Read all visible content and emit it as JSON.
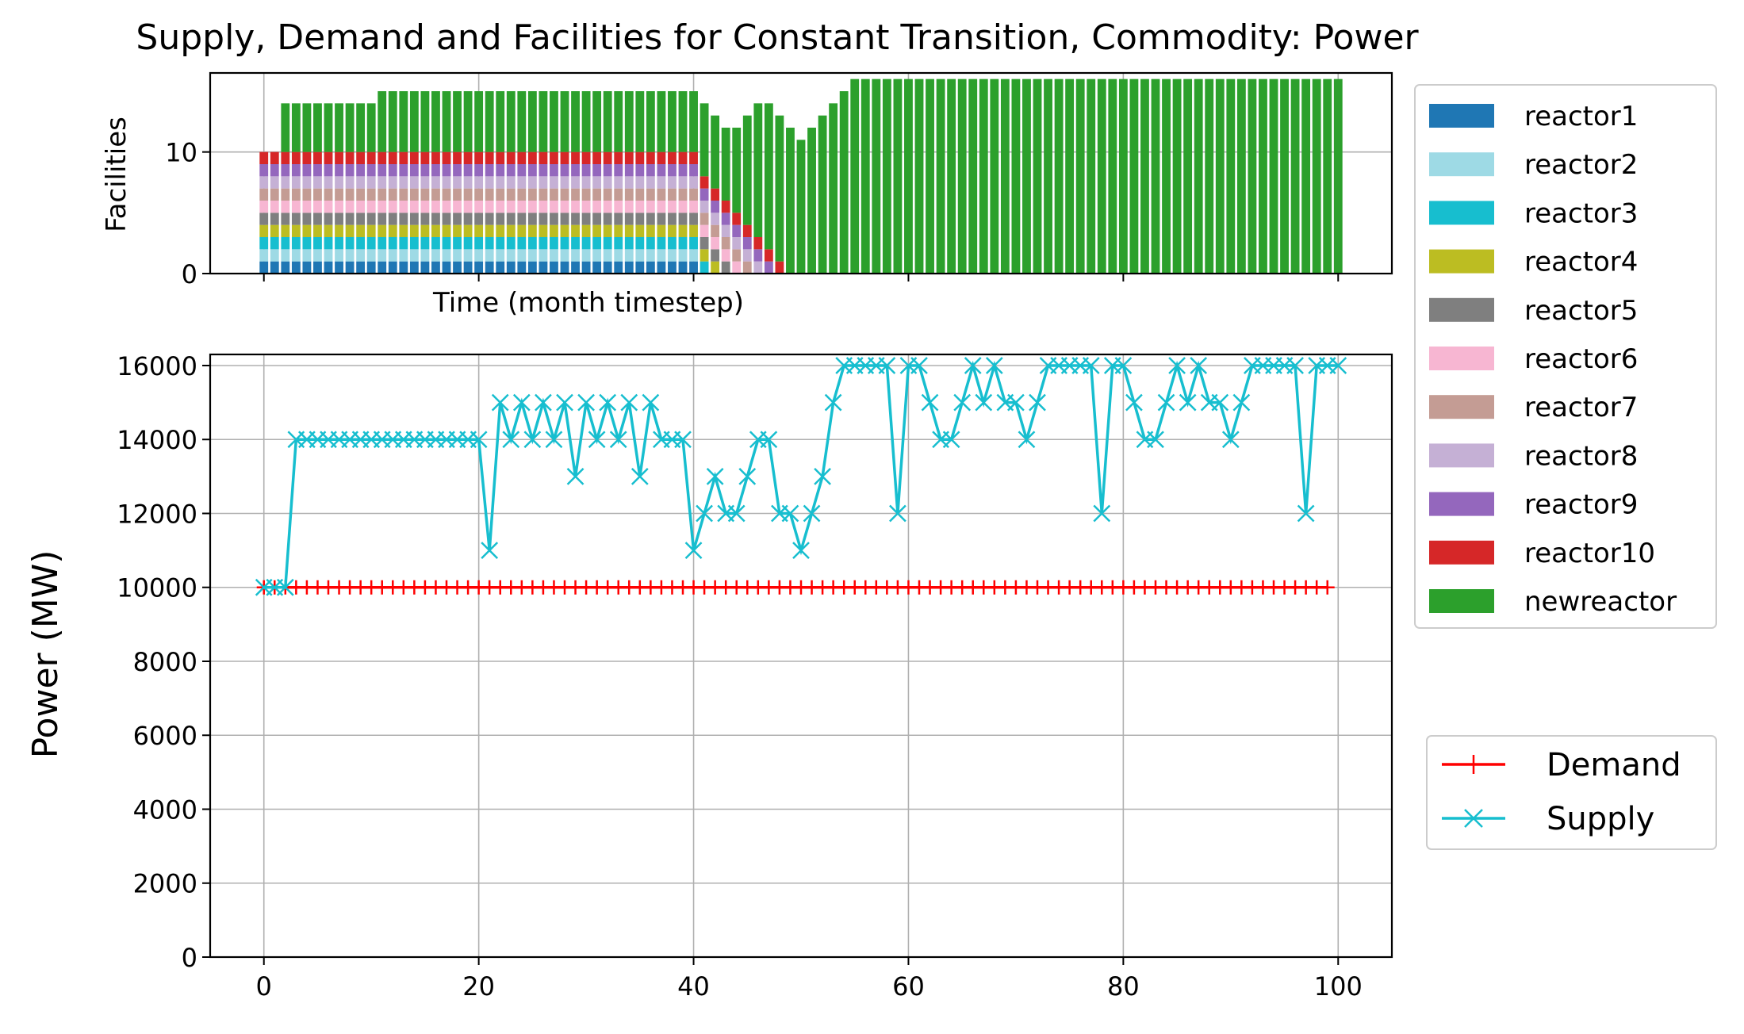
{
  "chart_data": [
    {
      "type": "bar",
      "stacked": true,
      "title": "Supply, Demand and Facilities for Constant Transition, Commodity:  Power",
      "xlabel": "Time (month timestep)",
      "ylabel": "Facilities",
      "xlim": [
        -5,
        105
      ],
      "ylim": [
        0,
        16.5
      ],
      "yticks": [
        "0",
        "10"
      ],
      "grid": true,
      "legend_position": "right, outside plot",
      "series": [
        {
          "name": "reactor1",
          "color": "#1f77b4",
          "end": 41
        },
        {
          "name": "reactor2",
          "color": "#9edae5",
          "end": 41
        },
        {
          "name": "reactor3",
          "color": "#17becf",
          "end": 42
        },
        {
          "name": "reactor4",
          "color": "#bcbd22",
          "end": 43
        },
        {
          "name": "reactor5",
          "color": "#7f7f7f",
          "end": 44
        },
        {
          "name": "reactor6",
          "color": "#f7b6d2",
          "end": 45
        },
        {
          "name": "reactor7",
          "color": "#c49c94",
          "end": 46
        },
        {
          "name": "reactor8",
          "color": "#c5b0d5",
          "end": 47
        },
        {
          "name": "reactor9",
          "color": "#9467bd",
          "end": 48
        },
        {
          "name": "reactor10",
          "color": "#d62728",
          "end": 49
        },
        {
          "name": "newreactor",
          "color": "#2ca02c",
          "start": 2,
          "totals": [
            10,
            10,
            14,
            14,
            14,
            14,
            14,
            14,
            14,
            14,
            14,
            15,
            15,
            15,
            15,
            15,
            15,
            15,
            15,
            15,
            15,
            15,
            15,
            15,
            15,
            15,
            15,
            15,
            15,
            15,
            15,
            15,
            15,
            15,
            15,
            15,
            15,
            15,
            15,
            15,
            15,
            14,
            13,
            12,
            12,
            13,
            14,
            14,
            13,
            12,
            11,
            12,
            13,
            14,
            15,
            16,
            16,
            16,
            16,
            16,
            16,
            16,
            16,
            16,
            16,
            16,
            16,
            16,
            16,
            16,
            16,
            16,
            16,
            16,
            16,
            16,
            16,
            16,
            16,
            16,
            16,
            16,
            16,
            16,
            16,
            16,
            16,
            16,
            16,
            16,
            16,
            16,
            16,
            16,
            16,
            16,
            16,
            16,
            16,
            16,
            16
          ]
        }
      ]
    },
    {
      "type": "line",
      "title": "",
      "xlabel": "",
      "ylabel": "Power (MW)",
      "xlim": [
        -5,
        105
      ],
      "ylim": [
        0,
        16300
      ],
      "xticks": [
        "0",
        "20",
        "40",
        "60",
        "80",
        "100"
      ],
      "yticks": [
        "0",
        "2000",
        "4000",
        "6000",
        "8000",
        "10000",
        "12000",
        "14000",
        "16000"
      ],
      "grid": true,
      "legend_position": "right, outside plot",
      "series": [
        {
          "name": "Demand",
          "color": "#ff0000",
          "marker": "+",
          "x_start": 0,
          "x_end": 99,
          "constant": 10000
        },
        {
          "name": "Supply",
          "color": "#17becf",
          "marker": "x",
          "x_start": 0,
          "values": [
            10000,
            10000,
            10000,
            14000,
            14000,
            14000,
            14000,
            14000,
            14000,
            14000,
            14000,
            14000,
            14000,
            14000,
            14000,
            14000,
            14000,
            14000,
            14000,
            14000,
            14000,
            11000,
            15000,
            14000,
            15000,
            14000,
            15000,
            14000,
            15000,
            13000,
            15000,
            14000,
            15000,
            14000,
            15000,
            13000,
            15000,
            14000,
            14000,
            14000,
            11000,
            12000,
            13000,
            12000,
            12000,
            13000,
            14000,
            14000,
            12000,
            12000,
            11000,
            12000,
            13000,
            15000,
            16000,
            16000,
            16000,
            16000,
            16000,
            12000,
            16000,
            16000,
            15000,
            14000,
            14000,
            15000,
            16000,
            15000,
            16000,
            15000,
            15000,
            14000,
            15000,
            16000,
            16000,
            16000,
            16000,
            16000,
            12000,
            16000,
            16000,
            15000,
            14000,
            14000,
            15000,
            16000,
            15000,
            16000,
            15000,
            15000,
            14000,
            15000,
            16000,
            16000,
            16000,
            16000,
            16000,
            12000,
            16000,
            16000,
            16000
          ]
        }
      ]
    }
  ]
}
